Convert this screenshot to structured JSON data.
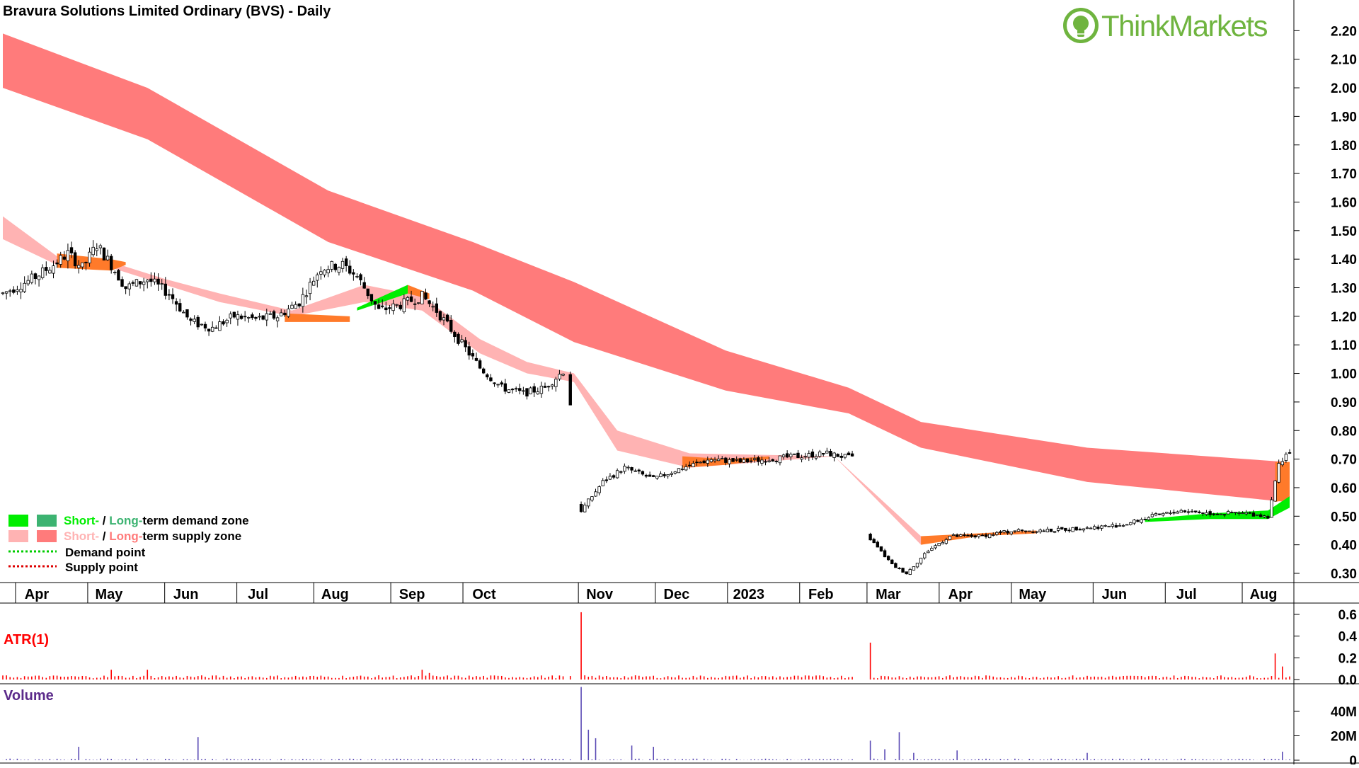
{
  "title": "Bravura Solutions Limited Ordinary (BVS) - Daily",
  "brand": {
    "name": "ThinkMarkets",
    "color": "#6fb43f",
    "icon": "lightbulb-icon"
  },
  "legend": {
    "row1": {
      "short": "Short-",
      "sep": " / ",
      "long": "Long-",
      "rest": "term demand zone"
    },
    "row2": {
      "short": "Short-",
      "sep": " / ",
      "long": "Long-",
      "rest": "term supply zone"
    },
    "row3": "Demand point",
    "row4": "Supply point"
  },
  "colors": {
    "short_demand": "#00ee00",
    "long_demand": "#3cb371",
    "short_supply": "#ffb3b3",
    "long_supply": "#ff7b7b",
    "orange_zone": "#ff7a2a",
    "atr": "#ff0000",
    "volume": "#5b4bb5"
  },
  "chart_data": [
    {
      "type": "candlestick",
      "title": "Bravura Solutions Limited Ordinary (BVS) - Daily",
      "ylim": [
        0.25,
        2.25
      ],
      "yticks": [
        "2.20",
        "2.10",
        "2.00",
        "1.90",
        "1.80",
        "1.70",
        "1.60",
        "1.50",
        "1.40",
        "1.30",
        "1.20",
        "1.10",
        "1.00",
        "0.90",
        "0.80",
        "0.70",
        "0.60",
        "0.50",
        "0.40",
        "0.30"
      ],
      "x_months": [
        "Apr",
        "May",
        "Jun",
        "Jul",
        "Aug",
        "Sep",
        "Oct",
        "Nov",
        "Dec",
        "2023",
        "Feb",
        "Mar",
        "Apr",
        "May",
        "Jun",
        "Jul",
        "Aug"
      ],
      "price_path": [
        [
          0,
          1.28
        ],
        [
          8,
          1.33
        ],
        [
          14,
          1.38
        ],
        [
          18,
          1.42
        ],
        [
          22,
          1.37
        ],
        [
          26,
          1.45
        ],
        [
          30,
          1.38
        ],
        [
          34,
          1.3
        ],
        [
          40,
          1.33
        ],
        [
          46,
          1.28
        ],
        [
          52,
          1.18
        ],
        [
          58,
          1.16
        ],
        [
          64,
          1.2
        ],
        [
          70,
          1.19
        ],
        [
          76,
          1.2
        ],
        [
          82,
          1.25
        ],
        [
          88,
          1.37
        ],
        [
          94,
          1.38
        ],
        [
          98,
          1.34
        ],
        [
          104,
          1.22
        ],
        [
          110,
          1.24
        ],
        [
          116,
          1.27
        ],
        [
          120,
          1.22
        ],
        [
          126,
          1.12
        ],
        [
          132,
          1.02
        ],
        [
          138,
          0.95
        ],
        [
          144,
          0.93
        ],
        [
          150,
          0.95
        ],
        [
          156,
          1.02
        ],
        [
          160,
          0.52
        ],
        [
          166,
          0.62
        ],
        [
          172,
          0.67
        ],
        [
          180,
          0.63
        ],
        [
          188,
          0.67
        ],
        [
          196,
          0.7
        ],
        [
          204,
          0.69
        ],
        [
          212,
          0.7
        ],
        [
          220,
          0.71
        ],
        [
          228,
          0.72
        ],
        [
          236,
          0.7
        ],
        [
          240,
          0.42
        ],
        [
          246,
          0.33
        ],
        [
          250,
          0.3
        ],
        [
          256,
          0.38
        ],
        [
          262,
          0.43
        ],
        [
          270,
          0.43
        ],
        [
          280,
          0.45
        ],
        [
          290,
          0.45
        ],
        [
          300,
          0.46
        ],
        [
          310,
          0.47
        ],
        [
          318,
          0.5
        ],
        [
          326,
          0.52
        ],
        [
          334,
          0.51
        ],
        [
          344,
          0.51
        ],
        [
          350,
          0.5
        ],
        [
          353,
          0.68
        ],
        [
          355,
          0.72
        ]
      ],
      "long_term_supply_zone": {
        "upper": [
          [
            0,
            2.19
          ],
          [
            40,
            2.0
          ],
          [
            90,
            1.64
          ],
          [
            130,
            1.46
          ],
          [
            158,
            1.32
          ],
          [
            200,
            1.08
          ],
          [
            234,
            0.95
          ],
          [
            254,
            0.83
          ],
          [
            300,
            0.74
          ],
          [
            355,
            0.69
          ]
        ],
        "lower": [
          [
            0,
            2.0
          ],
          [
            40,
            1.82
          ],
          [
            90,
            1.46
          ],
          [
            130,
            1.29
          ],
          [
            158,
            1.11
          ],
          [
            200,
            0.94
          ],
          [
            234,
            0.86
          ],
          [
            254,
            0.74
          ],
          [
            300,
            0.62
          ],
          [
            355,
            0.55
          ]
        ]
      },
      "short_term_supply_zone": {
        "upper": [
          [
            0,
            1.55
          ],
          [
            15,
            1.41
          ],
          [
            30,
            1.39
          ],
          [
            45,
            1.33
          ],
          [
            60,
            1.28
          ],
          [
            80,
            1.22
          ],
          [
            100,
            1.31
          ],
          [
            116,
            1.27
          ],
          [
            132,
            1.12
          ],
          [
            145,
            1.04
          ],
          [
            158,
            1.0
          ],
          [
            170,
            0.8
          ],
          [
            190,
            0.72
          ],
          [
            230,
            0.71
          ],
          [
            254,
            0.43
          ],
          [
            262,
            0.43
          ]
        ],
        "lower": [
          [
            0,
            1.47
          ],
          [
            15,
            1.38
          ],
          [
            30,
            1.37
          ],
          [
            45,
            1.31
          ],
          [
            60,
            1.25
          ],
          [
            80,
            1.2
          ],
          [
            100,
            1.25
          ],
          [
            116,
            1.22
          ],
          [
            132,
            1.07
          ],
          [
            145,
            1.0
          ],
          [
            158,
            0.97
          ],
          [
            170,
            0.73
          ],
          [
            190,
            0.67
          ],
          [
            230,
            0.71
          ],
          [
            254,
            0.4
          ],
          [
            262,
            0.42
          ]
        ]
      },
      "short_term_demand_zone": {
        "segments": [
          {
            "upper": [
              [
                98,
                1.23
              ],
              [
                112,
                1.31
              ]
            ],
            "lower": [
              [
                98,
                1.22
              ],
              [
                112,
                1.28
              ]
            ]
          },
          {
            "upper": [
              [
                316,
                0.49
              ],
              [
                334,
                0.51
              ],
              [
                350,
                0.52
              ],
              [
                356,
                0.57
              ]
            ],
            "lower": [
              [
                316,
                0.48
              ],
              [
                334,
                0.49
              ],
              [
                350,
                0.49
              ],
              [
                356,
                0.53
              ]
            ]
          }
        ]
      },
      "orange_zones": {
        "segments": [
          {
            "upper": [
              [
                15,
                1.42
              ],
              [
                30,
                1.4
              ],
              [
                34,
                1.39
              ]
            ],
            "lower": [
              [
                15,
                1.37
              ],
              [
                30,
                1.36
              ],
              [
                34,
                1.38
              ]
            ]
          },
          {
            "upper": [
              [
                78,
                1.21
              ],
              [
                96,
                1.2
              ]
            ],
            "lower": [
              [
                78,
                1.18
              ],
              [
                96,
                1.18
              ]
            ]
          },
          {
            "upper": [
              [
                112,
                1.31
              ],
              [
                118,
                1.28
              ]
            ],
            "lower": [
              [
                112,
                1.28
              ],
              [
                118,
                1.26
              ]
            ]
          },
          {
            "upper": [
              [
                188,
                0.71
              ],
              [
                200,
                0.7
              ],
              [
                212,
                0.71
              ]
            ],
            "lower": [
              [
                188,
                0.67
              ],
              [
                200,
                0.68
              ],
              [
                212,
                0.7
              ]
            ]
          },
          {
            "upper": [
              [
                254,
                0.43
              ],
              [
                270,
                0.44
              ],
              [
                286,
                0.45
              ]
            ],
            "lower": [
              [
                254,
                0.4
              ],
              [
                270,
                0.43
              ],
              [
                286,
                0.44
              ]
            ]
          },
          {
            "upper": [
              [
                352,
                0.69
              ],
              [
                356,
                0.69
              ]
            ],
            "lower": [
              [
                352,
                0.55
              ],
              [
                356,
                0.56
              ]
            ]
          }
        ]
      }
    },
    {
      "type": "bar",
      "title": "ATR(1)",
      "ylim": [
        0,
        0.65
      ],
      "yticks": [
        "0.6",
        "0.4",
        "0.2",
        "0.0"
      ],
      "baseline": 0.03,
      "spikes": [
        [
          160,
          0.62
        ],
        [
          240,
          0.34
        ],
        [
          352,
          0.24
        ],
        [
          354,
          0.12
        ],
        [
          30,
          0.09
        ],
        [
          40,
          0.09
        ],
        [
          116,
          0.09
        ],
        [
          118,
          0.06
        ]
      ]
    },
    {
      "type": "bar",
      "title": "Volume",
      "ylim": [
        0,
        62000000
      ],
      "yticks": [
        "40M",
        "20M",
        "0"
      ],
      "baseline": 600000,
      "spikes": [
        [
          160,
          60000000
        ],
        [
          162,
          25000000
        ],
        [
          164,
          18000000
        ],
        [
          54,
          19000000
        ],
        [
          21,
          11000000
        ],
        [
          174,
          12000000
        ],
        [
          180,
          11000000
        ],
        [
          240,
          16000000
        ],
        [
          244,
          9000000
        ],
        [
          248,
          23000000
        ],
        [
          252,
          6000000
        ],
        [
          264,
          8000000
        ],
        [
          300,
          6000000
        ],
        [
          354,
          7000000
        ]
      ]
    }
  ]
}
